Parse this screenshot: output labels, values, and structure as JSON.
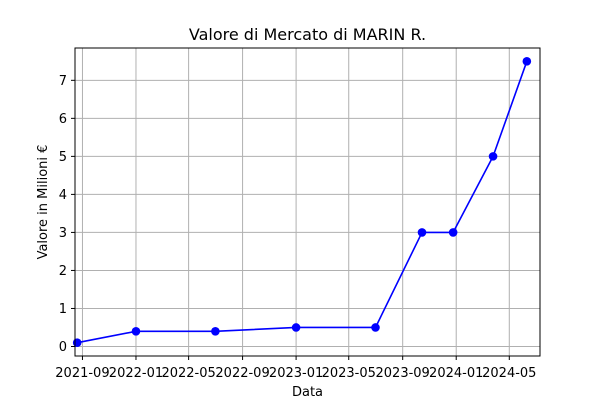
{
  "chart_data": {
    "type": "line",
    "title": "Valore di Mercato di MARIN R.",
    "xlabel": "Data",
    "ylabel": "Valore in Milioni €",
    "grid": true,
    "x_tick_labels": [
      "2021-09",
      "2022-01",
      "2022-05",
      "2022-09",
      "2023-01",
      "2023-05",
      "2023-09",
      "2024-01",
      "2024-05"
    ],
    "y_tick_labels": [
      "0",
      "1",
      "2",
      "3",
      "4",
      "5",
      "6",
      "7"
    ],
    "xlim": [
      "2021-08-15",
      "2024-07-10"
    ],
    "ylim": [
      -0.25,
      7.85
    ],
    "series": [
      {
        "color": "#0000ff",
        "marker": "circle",
        "points": [
          {
            "x": "2021-08-20",
            "y": 0.1
          },
          {
            "x": "2022-01-01",
            "y": 0.4
          },
          {
            "x": "2022-07-01",
            "y": 0.4
          },
          {
            "x": "2023-01-01",
            "y": 0.5
          },
          {
            "x": "2023-07-01",
            "y": 0.5
          },
          {
            "x": "2023-10-15",
            "y": 3.0
          },
          {
            "x": "2023-12-25",
            "y": 3.0
          },
          {
            "x": "2024-03-25",
            "y": 5.0
          },
          {
            "x": "2024-06-10",
            "y": 7.5
          }
        ]
      }
    ]
  }
}
